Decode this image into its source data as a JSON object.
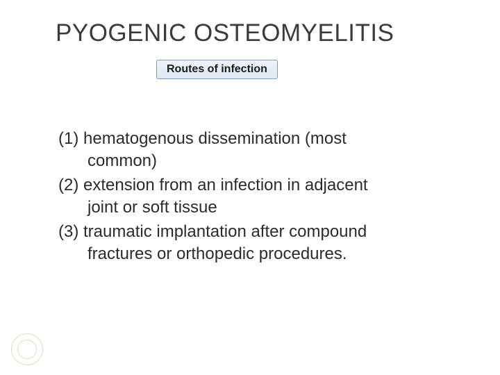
{
  "title": {
    "text": "PYOGENIC OSTEOMYELITIS",
    "color": "#3b3b3b",
    "fontsize": 35
  },
  "subtitle": {
    "text": "Routes of infection",
    "bg_gradient_top": "#eef3f8",
    "bg_gradient_bottom": "#dde8f2",
    "border_color": "#7a9bbf",
    "fontsize": 16
  },
  "list": {
    "fontsize": 24,
    "color": "#2b2b2b",
    "items": [
      {
        "num": "(1)",
        "line1": "hematogenous dissemination (most",
        "line2": "common)"
      },
      {
        "num": "(2)",
        "line1": "extension from an infection in adjacent",
        "line2": "joint or soft tissue"
      },
      {
        "num": "(3)",
        "line1": "traumatic implantation after compound",
        "line2": "fractures or orthopedic procedures."
      }
    ]
  },
  "decoration": {
    "circle_color": "#e6d9c2"
  },
  "background_color": "#ffffff"
}
